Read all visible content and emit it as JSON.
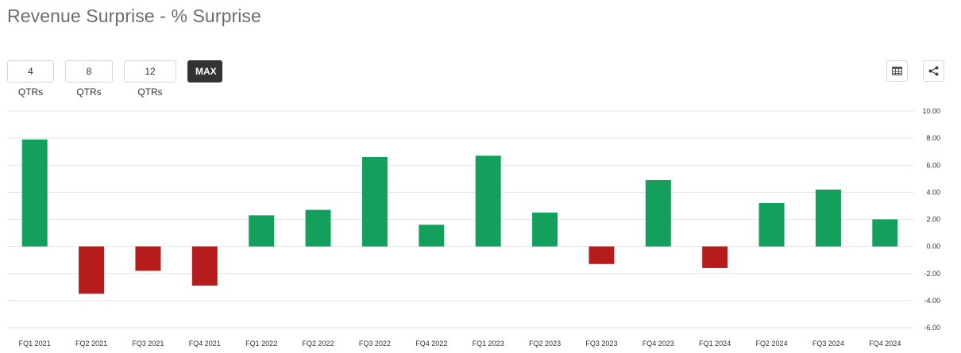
{
  "header": {
    "title": "Revenue Surprise - % Surprise"
  },
  "period_buttons": [
    {
      "label": "4 QTRs",
      "active": false
    },
    {
      "label": "8 QTRs",
      "active": false
    },
    {
      "label": "12 QTRs",
      "active": false
    },
    {
      "label": "MAX",
      "active": true
    }
  ],
  "toolbar": {
    "table_icon": "table-icon",
    "share_icon": "share-icon"
  },
  "colors": {
    "positive": "#12a05c",
    "negative": "#b71c1c",
    "grid": "#e3e3e3",
    "active_button": "#333333"
  },
  "chart_data": {
    "type": "bar",
    "title": "Revenue Surprise - % Surprise",
    "categories": [
      "FQ1 2021",
      "FQ2 2021",
      "FQ3 2021",
      "FQ4 2021",
      "FQ1 2022",
      "FQ2 2022",
      "FQ3 2022",
      "FQ4 2022",
      "FQ1 2023",
      "FQ2 2023",
      "FQ3 2023",
      "FQ4 2023",
      "FQ1 2024",
      "FQ2 2024",
      "FQ3 2024",
      "FQ4 2024"
    ],
    "values": [
      7.9,
      -3.5,
      -1.8,
      -2.9,
      2.3,
      2.7,
      6.6,
      1.6,
      6.7,
      2.5,
      -1.3,
      4.9,
      -1.6,
      3.2,
      4.2,
      2.0
    ],
    "ylim": [
      -6,
      10
    ],
    "yticks": [
      "10.00",
      "8.00",
      "6.00",
      "4.00",
      "2.00",
      "0.00",
      "-2.00",
      "-4.00",
      "-6.00"
    ],
    "ytick_values": [
      10,
      8,
      6,
      4,
      2,
      0,
      -2,
      -4,
      -6
    ],
    "xlabel": "",
    "ylabel": "",
    "grid": true,
    "y_axis_side": "right",
    "legend": "none"
  }
}
